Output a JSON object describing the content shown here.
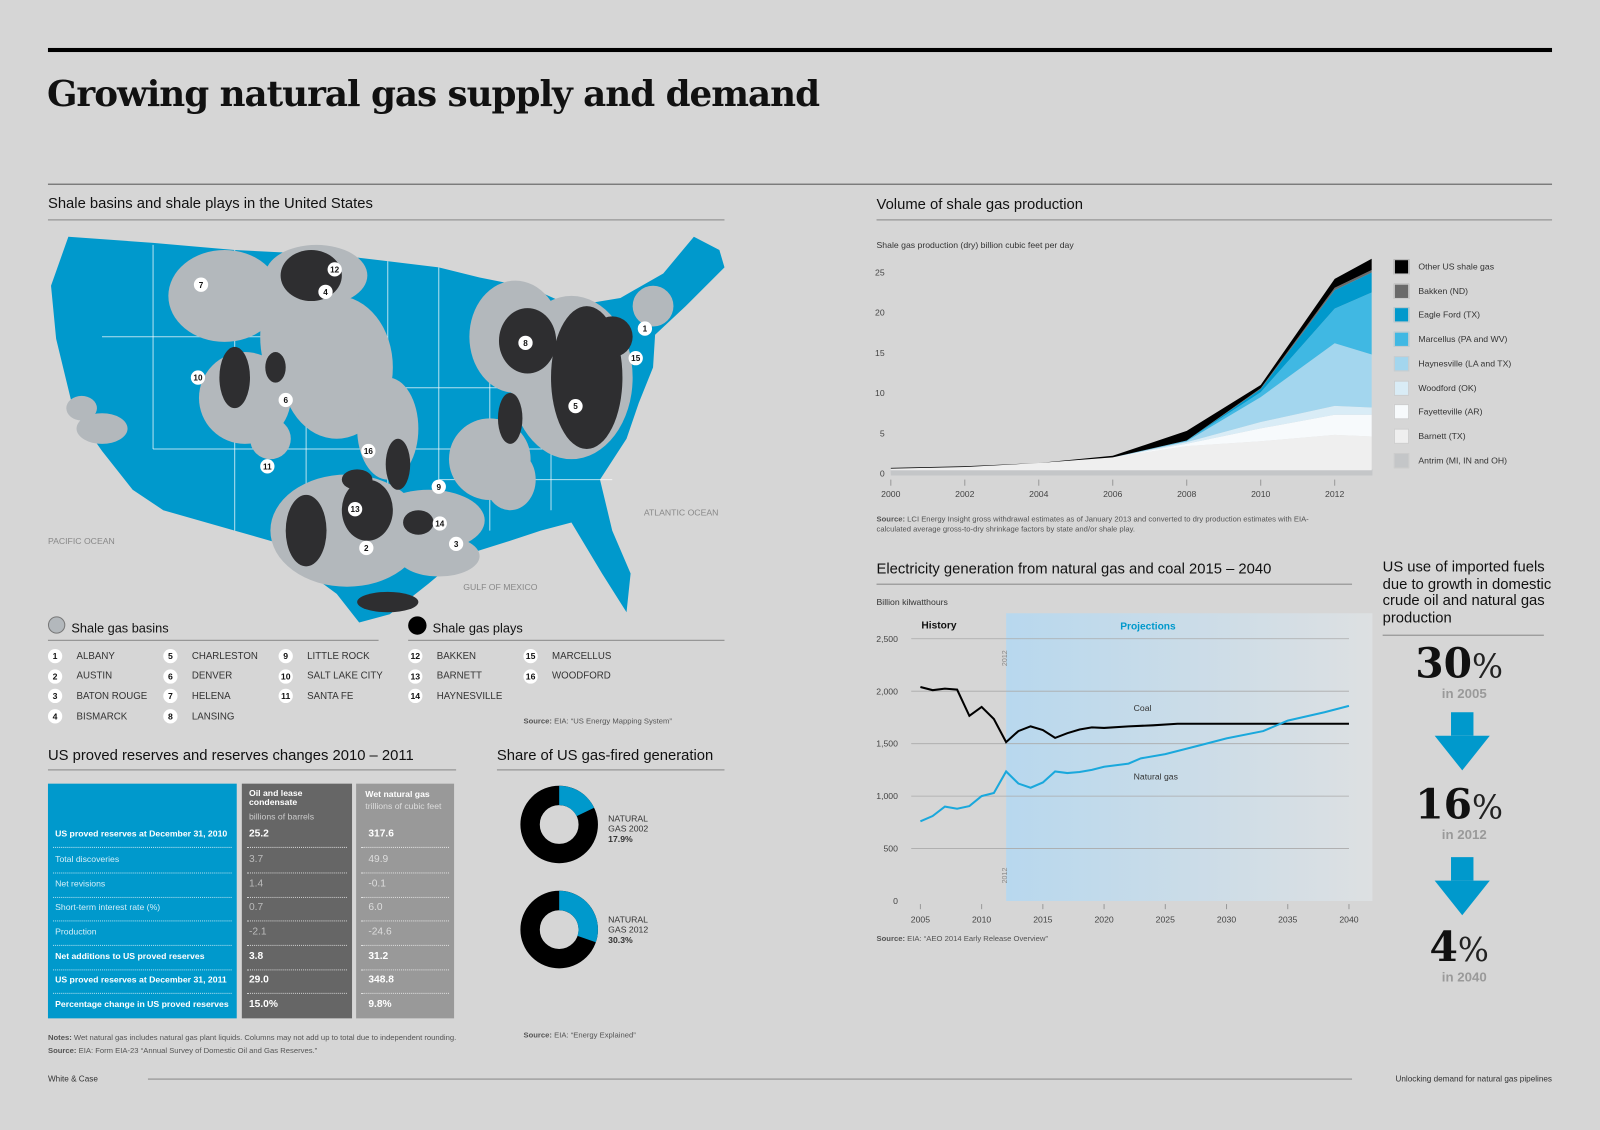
{
  "title": "Growing natural gas supply and demand",
  "map": {
    "heading": "Shale basins and shale plays in the United States",
    "labels": {
      "pacific": "PACIFIC OCEAN",
      "atlantic": "ATLANTIC OCEAN",
      "gulf": "GULF OF MEXICO"
    },
    "basins_title": "Shale gas basins",
    "plays_title": "Shale gas plays",
    "basins": [
      {
        "n": "1",
        "name": "ALBANY"
      },
      {
        "n": "2",
        "name": "AUSTIN"
      },
      {
        "n": "3",
        "name": "BATON ROUGE"
      },
      {
        "n": "4",
        "name": "BISMARCK"
      },
      {
        "n": "5",
        "name": "CHARLESTON"
      },
      {
        "n": "6",
        "name": "DENVER"
      },
      {
        "n": "7",
        "name": "HELENA"
      },
      {
        "n": "8",
        "name": "LANSING"
      },
      {
        "n": "9",
        "name": "LITTLE ROCK"
      },
      {
        "n": "10",
        "name": "SALT LAKE CITY"
      },
      {
        "n": "11",
        "name": "SANTA FE"
      }
    ],
    "plays": [
      {
        "n": "12",
        "name": "BAKKEN"
      },
      {
        "n": "13",
        "name": "BARNETT"
      },
      {
        "n": "14",
        "name": "HAYNESVILLE"
      },
      {
        "n": "15",
        "name": "MARCELLUS"
      },
      {
        "n": "16",
        "name": "WOODFORD"
      }
    ],
    "source_label": "Source:",
    "source": "EIA: “US Energy Mapping System”",
    "colors": {
      "land": "#0099cc",
      "basin": "#b3b8bc",
      "play": "#2e2e30"
    }
  },
  "reserves": {
    "heading": "US proved reserves and reserves changes 2010 – 2011",
    "col1": {
      "title": "Oil and lease condensate",
      "unit": "billions of barrels"
    },
    "col2": {
      "title": "Wet natural gas",
      "unit": "trillions of cubic feet"
    },
    "rows": [
      {
        "label": "US proved reserves at December 31, 2010",
        "oil": "25.2",
        "gas": "317.6",
        "bold": true
      },
      {
        "label": "Total discoveries",
        "oil": "3.7",
        "gas": "49.9",
        "bold": false
      },
      {
        "label": "Net revisions",
        "oil": "1.4",
        "gas": "-0.1",
        "bold": false
      },
      {
        "label": "Short-term interest rate (%)",
        "oil": "0.7",
        "gas": "6.0",
        "bold": false
      },
      {
        "label": "Production",
        "oil": "-2.1",
        "gas": "-24.6",
        "bold": false
      },
      {
        "label": "Net additions to US proved reserves",
        "oil": "3.8",
        "gas": "31.2",
        "bold": true
      },
      {
        "label": "US proved reserves at December 31, 2011",
        "oil": "29.0",
        "gas": "348.8",
        "bold": true
      },
      {
        "label": "Percentage change in US proved reserves",
        "oil": "15.0%",
        "gas": "9.8%",
        "bold": true
      }
    ],
    "notes_label": "Notes:",
    "notes": "Wet natural gas includes natural gas plant liquids. Columns may not add up to total due to independent rounding.",
    "source_label": "Source:",
    "source": "EIA: Form EIA-23 “Annual Survey of Domestic Oil and Gas Reserves.”",
    "colors": {
      "label_col": "#0099cc",
      "oil_col": "#666666",
      "gas_col": "#999999"
    }
  },
  "share": {
    "heading": "Share of US gas-fired generation",
    "source_label": "Source:",
    "source": "EIA: “Energy Explained”"
  },
  "footer": {
    "left": "White & Case",
    "right": "Unlocking demand for natural gas pipelines"
  },
  "imports": {
    "heading": "US use of imported fuels due to growth in domestic crude oil and natural gas production",
    "items": [
      {
        "value": "30",
        "unit": "%",
        "year": "in 2005"
      },
      {
        "value": "16",
        "unit": "%",
        "year": "in 2012"
      },
      {
        "value": "4",
        "unit": "%",
        "year": "in 2040"
      }
    ],
    "arrow_color": "#0099cc"
  },
  "chart_data": [
    {
      "type": "area",
      "stacked": true,
      "title": "Volume of shale gas production",
      "ylabel": "Shale gas production (dry) billion cubic feet per day",
      "ylim": [
        0,
        25
      ],
      "yticks": [
        "0",
        "5",
        "10",
        "15",
        "20",
        "25"
      ],
      "xticks": [
        "2000",
        "2002",
        "2004",
        "2006",
        "2008",
        "2010",
        "2012"
      ],
      "x": [
        2000,
        2002,
        2004,
        2006,
        2008,
        2010,
        2012,
        2013
      ],
      "legend": "right",
      "series": [
        {
          "name": "Antrim (MI, IN and OH)",
          "color": "#c4c6c8",
          "values": [
            0.4,
            0.4,
            0.4,
            0.4,
            0.4,
            0.4,
            0.4,
            0.4
          ]
        },
        {
          "name": "Barnett (TX)",
          "color": "#efefef",
          "values": [
            0.2,
            0.4,
            0.9,
            1.6,
            3.0,
            3.6,
            4.4,
            4.2
          ]
        },
        {
          "name": "Fayetteville (AR)",
          "color": "#f7fafc",
          "values": [
            0,
            0,
            0,
            0,
            0.3,
            1.6,
            2.5,
            2.7
          ]
        },
        {
          "name": "Woodford (OK)",
          "color": "#d9ecf6",
          "values": [
            0,
            0,
            0,
            0,
            0.2,
            0.8,
            1.1,
            0.9
          ]
        },
        {
          "name": "Haynesville (LA and TX)",
          "color": "#a3d6ee",
          "values": [
            0,
            0,
            0,
            0,
            0.1,
            3.1,
            7.8,
            6.6
          ]
        },
        {
          "name": "Marcellus (PA and WV)",
          "color": "#40b8e3",
          "values": [
            0,
            0,
            0,
            0,
            0.1,
            0.6,
            4.3,
            7.7
          ]
        },
        {
          "name": "Eagle Ford (TX)",
          "color": "#0099cc",
          "values": [
            0,
            0,
            0,
            0,
            0,
            0.4,
            2.3,
            2.5
          ]
        },
        {
          "name": "Bakken (ND)",
          "color": "#6a6a6a",
          "values": [
            0,
            0,
            0,
            0,
            0,
            0.1,
            0.3,
            0.3
          ]
        },
        {
          "name": "Other US shale gas",
          "color": "#000000",
          "values": [
            0.1,
            0.1,
            0,
            0.2,
            1.2,
            0.4,
            1.1,
            1.4
          ]
        }
      ],
      "source_label": "Source:",
      "source": "LCI Energy Insight gross withdrawal estimates as of January 2013 and converted to dry production estimates with EIA-calculated average gross-to-dry shrinkage factors by state and/or shale play."
    },
    {
      "type": "line",
      "title": "Electricity generation from natural gas and coal 2015 – 2040",
      "ylabel": "Billion kilwatthours",
      "ylim": [
        0,
        2500
      ],
      "yticks": [
        "0",
        "500",
        "1,000",
        "1,500",
        "2,000",
        "2,500"
      ],
      "xlim": [
        2005,
        2040
      ],
      "xticks": [
        "2005",
        "2010",
        "2015",
        "2020",
        "2025",
        "2030",
        "2035",
        "2040"
      ],
      "grid": true,
      "regions": {
        "history": "History",
        "projections": "Projections",
        "divider": "2012",
        "projection_color": "#0099cc"
      },
      "series": [
        {
          "name": "Coal",
          "color": "#000000",
          "x": [
            2005,
            2006,
            2007,
            2008,
            2009,
            2010,
            2011,
            2012,
            2013,
            2014,
            2015,
            2016,
            2017,
            2018,
            2019,
            2020,
            2022,
            2024,
            2026,
            2030,
            2035,
            2040
          ],
          "values": [
            2040,
            2010,
            2025,
            2015,
            1765,
            1850,
            1735,
            1515,
            1620,
            1665,
            1630,
            1555,
            1600,
            1635,
            1655,
            1650,
            1665,
            1675,
            1690,
            1690,
            1690,
            1690
          ]
        },
        {
          "name": "Natural gas",
          "color": "#1aa8dc",
          "x": [
            2005,
            2006,
            2007,
            2008,
            2009,
            2010,
            2011,
            2012,
            2013,
            2014,
            2015,
            2016,
            2017,
            2018,
            2019,
            2020,
            2022,
            2023,
            2025,
            2028,
            2030,
            2033,
            2035,
            2038,
            2040
          ],
          "values": [
            760,
            810,
            900,
            880,
            905,
            1000,
            1030,
            1235,
            1120,
            1080,
            1130,
            1235,
            1220,
            1230,
            1250,
            1280,
            1310,
            1360,
            1400,
            1490,
            1550,
            1620,
            1720,
            1800,
            1860
          ]
        }
      ],
      "source_label": "Source:",
      "source": "EIA: “AEO 2014 Early Release Overview”"
    },
    {
      "type": "pie",
      "donut": true,
      "label": "NATURAL GAS 2002",
      "value_label": "17.9%",
      "value": 17.9,
      "colors": [
        "#0099cc",
        "#000000"
      ]
    },
    {
      "type": "pie",
      "donut": true,
      "label": "NATURAL GAS 2012",
      "value_label": "30.3%",
      "value": 30.3,
      "colors": [
        "#0099cc",
        "#000000"
      ]
    }
  ]
}
